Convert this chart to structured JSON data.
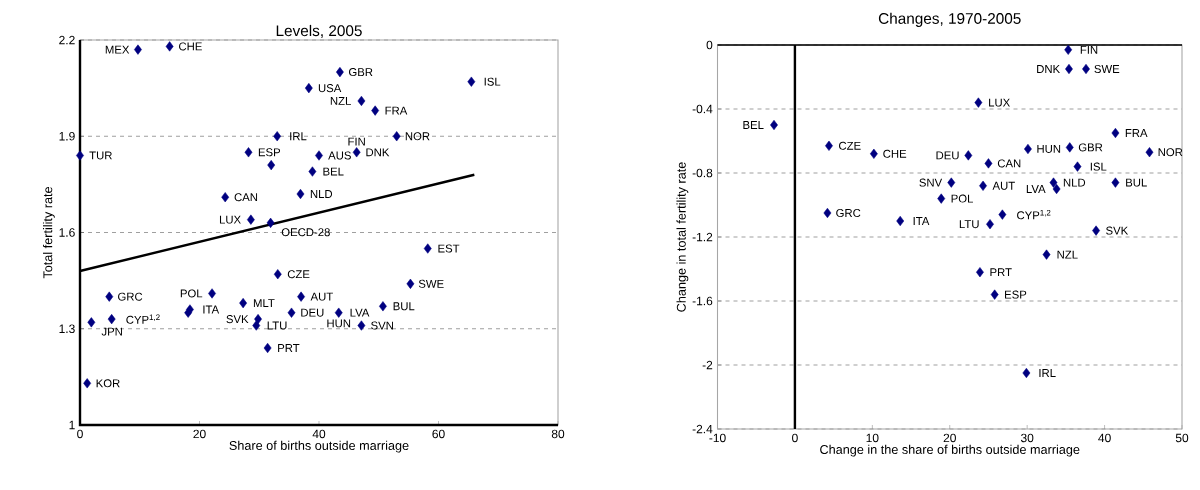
{
  "chart_data": [
    {
      "type": "scatter",
      "title": "Levels, 2005",
      "xlabel": "Share of births outside marriage",
      "ylabel": "Total fertility rate",
      "xlim": [
        0,
        80
      ],
      "xticks": [
        0,
        20,
        40,
        60,
        80
      ],
      "ylim": [
        1,
        2.2
      ],
      "yticks": [
        1,
        1.3,
        1.6,
        1.9,
        2.2
      ],
      "grid": "y",
      "marker": "diamond",
      "series": [
        {
          "color": "#000080",
          "x": [
            9.7,
            15.0,
            0,
            33.0,
            28.2,
            32.0,
            38.3,
            43.5,
            47.1,
            49.4,
            53.0,
            65.5,
            40.0,
            46.3,
            38.9,
            36.9,
            24.3,
            28.6,
            31.9,
            58.2,
            33.1,
            55.3,
            4.9,
            22.1,
            27.3,
            18.4,
            18.1,
            37.0,
            29.8,
            29.5,
            35.4,
            43.3,
            47.1,
            50.7,
            31.4,
            5.3,
            1.9,
            1.2
          ],
          "values": [
            2.17,
            2.18,
            1.84,
            1.9,
            1.85,
            1.81,
            2.05,
            2.1,
            2.01,
            1.98,
            1.9,
            2.07,
            1.84,
            1.85,
            1.79,
            1.72,
            1.71,
            1.64,
            1.63,
            1.55,
            1.47,
            1.44,
            1.4,
            1.41,
            1.38,
            1.36,
            1.35,
            1.4,
            1.33,
            1.31,
            1.35,
            1.35,
            1.31,
            1.37,
            1.24,
            1.33,
            1.32,
            1.13
          ]
        },
        {
          "type": "line",
          "marker": "none",
          "color": "#000000",
          "x": [
            0,
            66
          ],
          "values": [
            1.48,
            1.78
          ]
        }
      ],
      "annotations": [
        {
          "text": "MEX",
          "x": 9.7,
          "y": 2.17
        },
        {
          "text": "CHE",
          "x": 15.0,
          "y": 2.18
        },
        {
          "text": "TUR",
          "x": 0,
          "y": 1.84
        },
        {
          "text": "IRL",
          "x": 33.0,
          "y": 1.9
        },
        {
          "text": "ESP",
          "x": 28.2,
          "y": 1.85
        },
        {
          "text": "USA",
          "x": 38.3,
          "y": 2.05
        },
        {
          "text": "GBR",
          "x": 43.5,
          "y": 2.1
        },
        {
          "text": "NZL",
          "x": 47.1,
          "y": 2.01
        },
        {
          "text": "FRA",
          "x": 49.4,
          "y": 1.98
        },
        {
          "text": "NOR",
          "x": 53.0,
          "y": 1.9
        },
        {
          "text": "ISL",
          "x": 65.5,
          "y": 2.07
        },
        {
          "text": "AUS",
          "x": 40.0,
          "y": 1.84
        },
        {
          "text": "DNK",
          "x": 46.3,
          "y": 1.85
        },
        {
          "text": "FIN",
          "x": 46.3,
          "y": 1.85
        },
        {
          "text": "BEL",
          "x": 38.9,
          "y": 1.79
        },
        {
          "text": "NLD",
          "x": 36.9,
          "y": 1.72
        },
        {
          "text": "CAN",
          "x": 24.3,
          "y": 1.71
        },
        {
          "text": "LUX",
          "x": 28.6,
          "y": 1.64
        },
        {
          "text": "OECD-28",
          "x": 31.9,
          "y": 1.63
        },
        {
          "text": "EST",
          "x": 58.2,
          "y": 1.55
        },
        {
          "text": "CZE",
          "x": 33.1,
          "y": 1.47
        },
        {
          "text": "SWE",
          "x": 55.3,
          "y": 1.44
        },
        {
          "text": "GRC",
          "x": 4.9,
          "y": 1.4
        },
        {
          "text": "POL",
          "x": 22.1,
          "y": 1.41
        },
        {
          "text": "MLT",
          "x": 27.3,
          "y": 1.38
        },
        {
          "text": "ITA",
          "x": 18.4,
          "y": 1.36
        },
        {
          "text": "AUT",
          "x": 37.0,
          "y": 1.4
        },
        {
          "text": "SVK",
          "x": 29.8,
          "y": 1.33
        },
        {
          "text": "LTU",
          "x": 29.5,
          "y": 1.31
        },
        {
          "text": "DEU",
          "x": 35.4,
          "y": 1.35
        },
        {
          "text": "LVA",
          "x": 43.3,
          "y": 1.35
        },
        {
          "text": "HUN",
          "x": 43.3,
          "y": 1.35
        },
        {
          "text": "SVN",
          "x": 47.1,
          "y": 1.31
        },
        {
          "text": "BUL",
          "x": 50.7,
          "y": 1.37
        },
        {
          "text": "PRT",
          "x": 31.4,
          "y": 1.24
        },
        {
          "text": "CYP$^{1,2}$",
          "x": 5.3,
          "y": 1.33
        },
        {
          "text": "JPN",
          "x": 1.9,
          "y": 1.32
        },
        {
          "text": "KOR",
          "x": 1.2,
          "y": 1.13
        }
      ]
    },
    {
      "type": "scatter",
      "title": "Changes, 1970-2005",
      "xlabel": "Change in the share of births outside marriage",
      "ylabel": "Change in total fertility rate",
      "xlim": [
        -10,
        50
      ],
      "xticks": [
        -10,
        0,
        10,
        20,
        30,
        40,
        50
      ],
      "ylim": [
        -2.4,
        0
      ],
      "yticks": [
        -2.4,
        -2,
        -1.6,
        -1.2,
        -0.8,
        -0.4,
        0
      ],
      "grid": "y",
      "marker": "diamond",
      "series": [
        {
          "color": "#000080",
          "x": [
            35.3,
            35.4,
            37.6,
            23.7,
            41.4,
            35.5,
            30.1,
            22.4,
            25.0,
            45.8,
            36.5,
            33.4,
            33.8,
            41.4,
            20.2,
            24.3,
            18.9,
            26.8,
            25.2,
            13.6,
            38.9,
            32.5,
            23.9,
            25.8,
            29.9,
            -2.7,
            4.4,
            10.2,
            4.2
          ],
          "values": [
            -0.03,
            -0.15,
            -0.15,
            -0.36,
            -0.55,
            -0.64,
            -0.65,
            -0.69,
            -0.74,
            -0.67,
            -0.76,
            -0.86,
            -0.9,
            -0.86,
            -0.86,
            -0.88,
            -0.96,
            -1.06,
            -1.12,
            -1.1,
            -1.16,
            -1.31,
            -1.42,
            -1.56,
            -2.05,
            -0.5,
            -0.63,
            -0.68,
            -1.05
          ]
        }
      ],
      "annotations": [
        {
          "text": "FIN",
          "x": 35.3,
          "y": -0.03
        },
        {
          "text": "DNK",
          "x": 35.4,
          "y": -0.15
        },
        {
          "text": "SWE",
          "x": 37.6,
          "y": -0.15
        },
        {
          "text": "LUX",
          "x": 23.7,
          "y": -0.36
        },
        {
          "text": "FRA",
          "x": 41.4,
          "y": -0.55
        },
        {
          "text": "GBR",
          "x": 35.5,
          "y": -0.64
        },
        {
          "text": "HUN",
          "x": 30.1,
          "y": -0.65
        },
        {
          "text": "DEU",
          "x": 22.4,
          "y": -0.69
        },
        {
          "text": "CAN",
          "x": 25.0,
          "y": -0.74
        },
        {
          "text": "NOR",
          "x": 45.8,
          "y": -0.67
        },
        {
          "text": "ISL",
          "x": 36.5,
          "y": -0.76
        },
        {
          "text": "NLD",
          "x": 33.4,
          "y": -0.86
        },
        {
          "text": "LVA",
          "x": 33.8,
          "y": -0.9
        },
        {
          "text": "BUL",
          "x": 41.4,
          "y": -0.86
        },
        {
          "text": "SNV",
          "x": 20.2,
          "y": -0.86
        },
        {
          "text": "AUT",
          "x": 24.3,
          "y": -0.88
        },
        {
          "text": "POL",
          "x": 18.9,
          "y": -0.96
        },
        {
          "text": "CYP$^{1,2}$",
          "x": 26.8,
          "y": -1.06
        },
        {
          "text": "LTU",
          "x": 25.2,
          "y": -1.12
        },
        {
          "text": "ITA",
          "x": 13.6,
          "y": -1.1
        },
        {
          "text": "SVK",
          "x": 38.9,
          "y": -1.16
        },
        {
          "text": "NZL",
          "x": 32.5,
          "y": -1.31
        },
        {
          "text": "PRT",
          "x": 23.9,
          "y": -1.42
        },
        {
          "text": "ESP",
          "x": 25.8,
          "y": -1.56
        },
        {
          "text": "IRL",
          "x": 29.9,
          "y": -2.05
        },
        {
          "text": "BEL",
          "x": -2.7,
          "y": -0.5
        },
        {
          "text": "CZE",
          "x": 4.4,
          "y": -0.63
        },
        {
          "text": "CHE",
          "x": 10.2,
          "y": -0.68
        },
        {
          "text": "GRC",
          "x": 4.2,
          "y": -1.05
        }
      ]
    }
  ]
}
